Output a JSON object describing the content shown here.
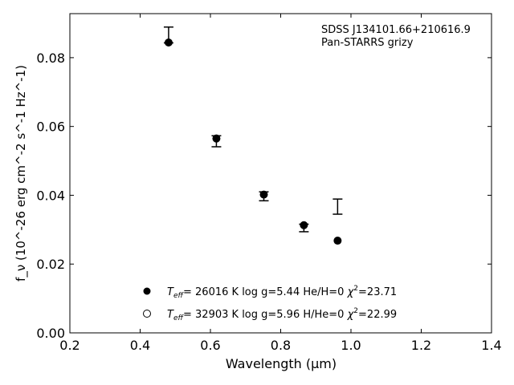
{
  "chart_data": {
    "type": "scatter",
    "xlabel": "Wavelength (μm)",
    "ylabel": "f_ν (10^-26 erg cm^-2 s^-1 Hz^-1)",
    "xlim": [
      0.2,
      1.4
    ],
    "ylim": [
      0.0,
      0.0928
    ],
    "xticks": [
      "0.2",
      "0.4",
      "0.6",
      "0.8",
      "1.0",
      "1.2",
      "1.4"
    ],
    "yticks": [
      "0.00",
      "0.02",
      "0.04",
      "0.06",
      "0.08"
    ],
    "grid": false,
    "annotation": [
      "SDSS J134101.66+210616.9",
      "Pan-STARRS grizy"
    ],
    "observed": {
      "x": [
        0.481,
        0.617,
        0.752,
        0.866,
        0.962
      ],
      "y": [
        0.0866,
        0.0557,
        0.0397,
        0.0305,
        0.0367
      ],
      "yerr": [
        0.0023,
        0.0016,
        0.0013,
        0.0011,
        0.0022
      ]
    },
    "series": [
      {
        "name": "model-he",
        "marker": "filled",
        "legend_teff": "= 26016 K",
        "legend_rest": "log g=5.44  He/H=0",
        "legend_chi": "=23.71",
        "x": [
          0.481,
          0.617,
          0.752,
          0.866,
          0.962
        ],
        "y": [
          0.0844,
          0.0565,
          0.0402,
          0.0313,
          0.0268
        ]
      },
      {
        "name": "model-h",
        "marker": "open",
        "legend_teff": "= 32903 K",
        "legend_rest": "log g=5.96  H/He=0",
        "legend_chi": "=22.99",
        "x": [],
        "y": []
      }
    ],
    "legend_position": "bottom-center"
  }
}
